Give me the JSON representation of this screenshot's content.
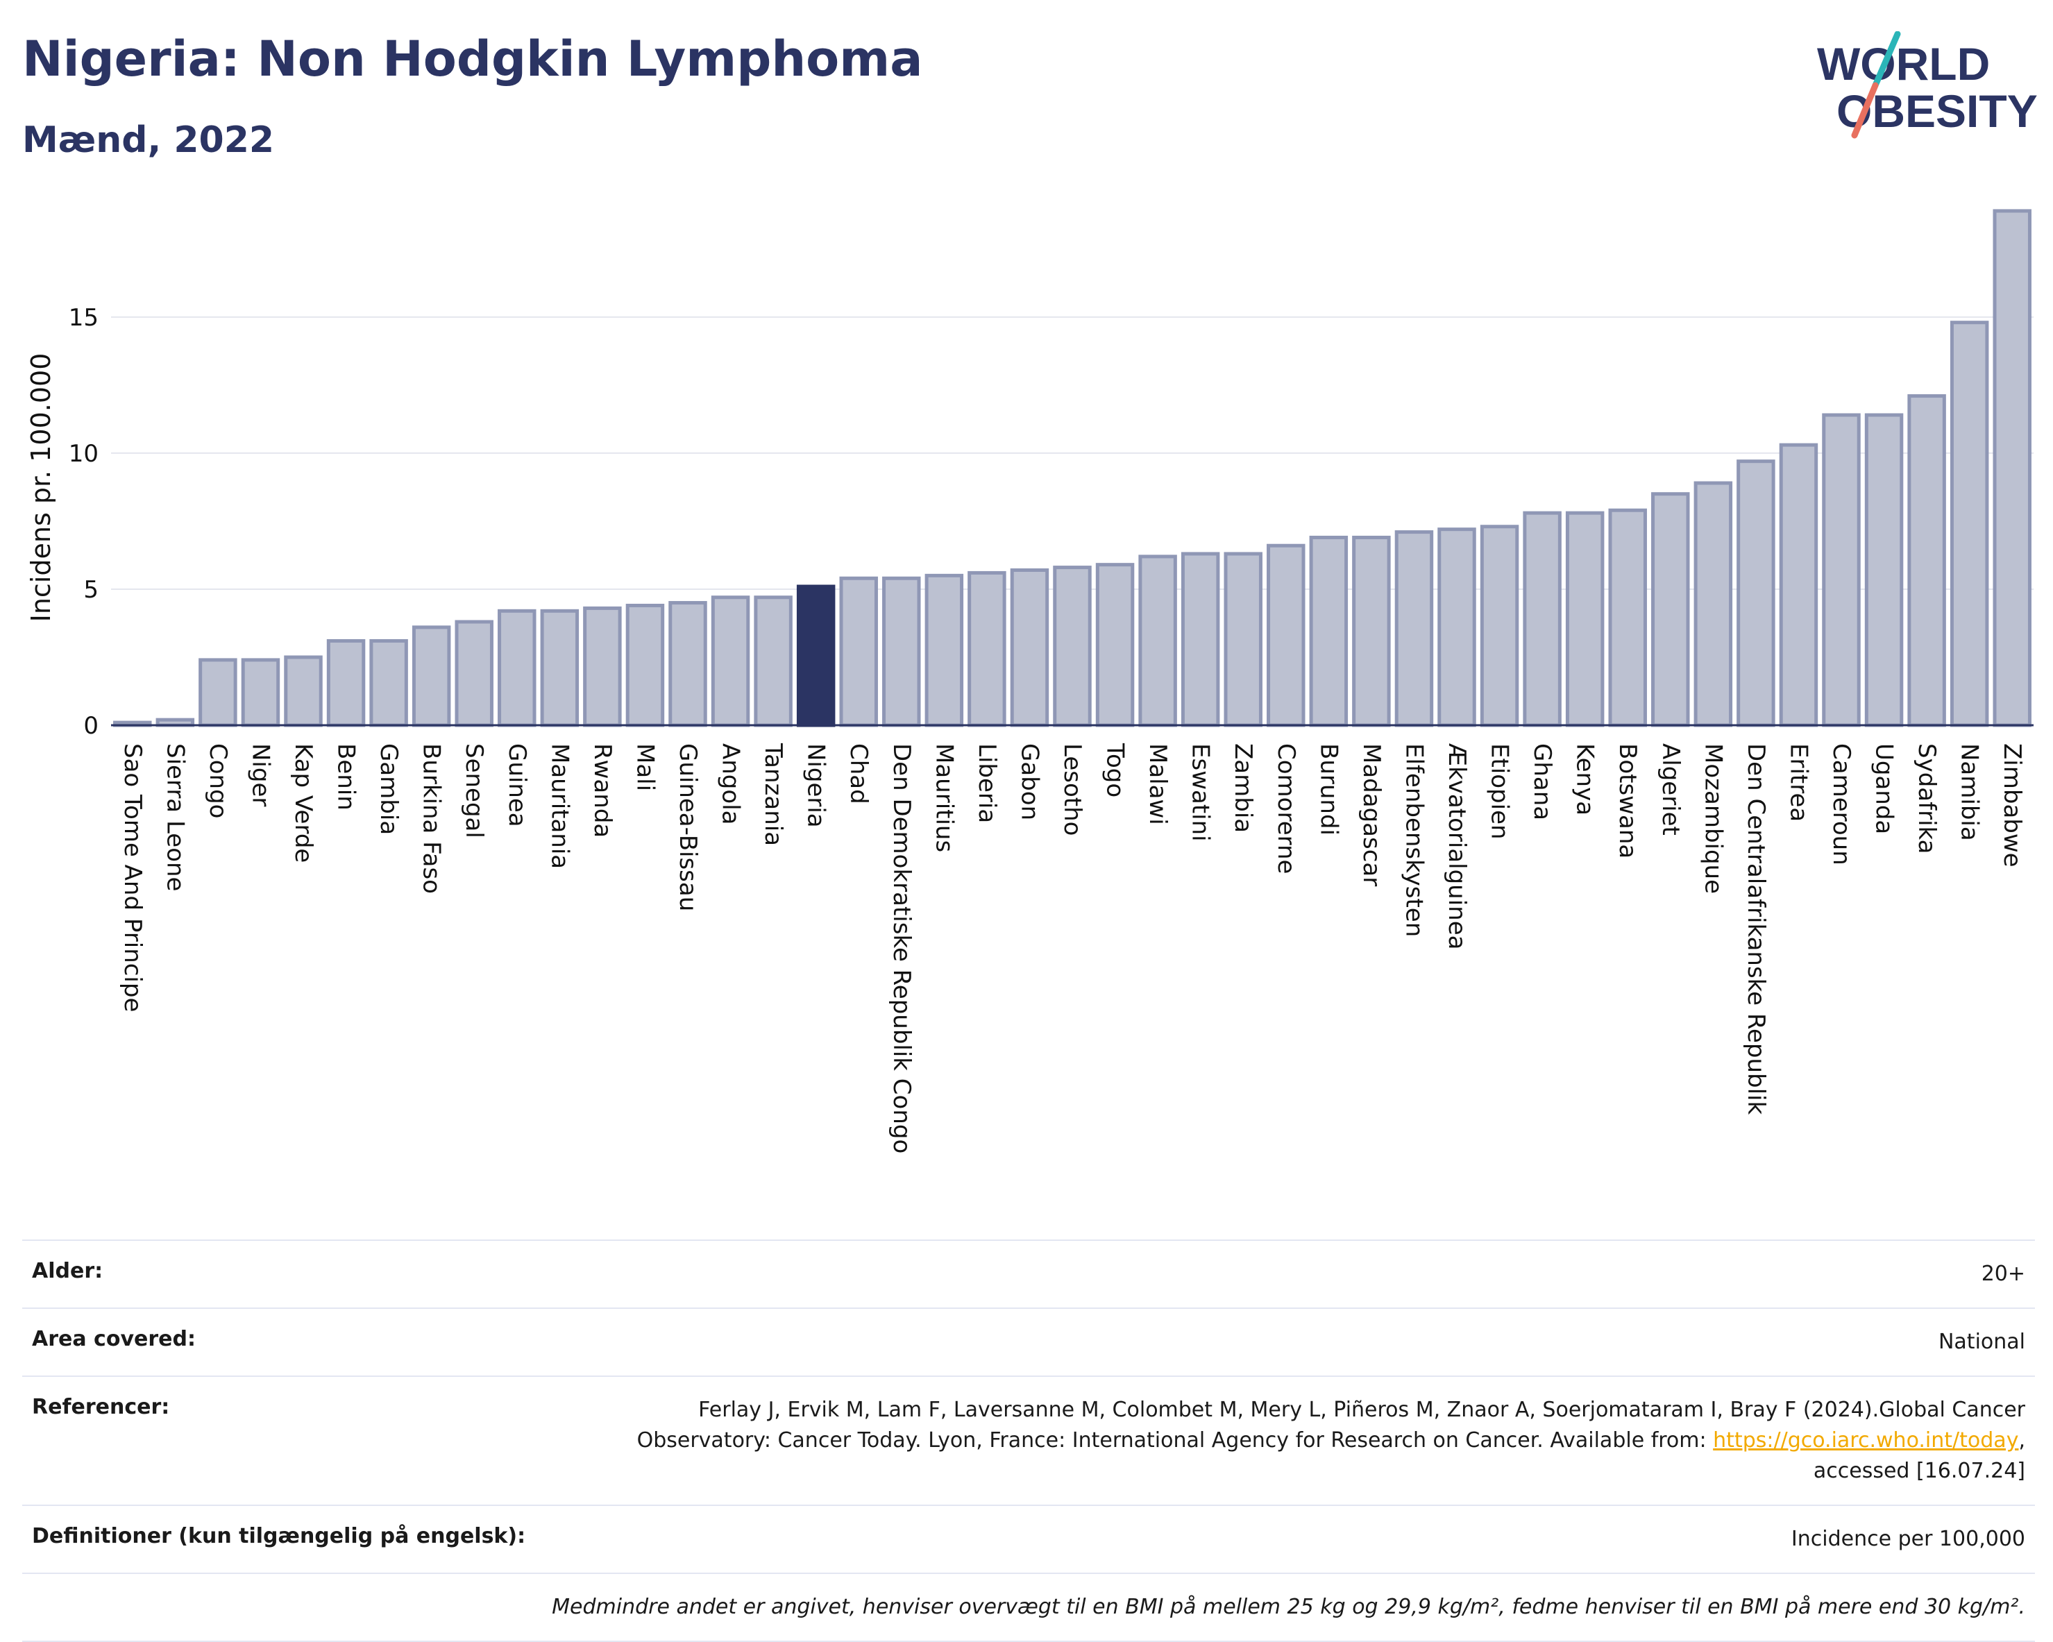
{
  "header": {
    "title": "Nigeria: Non Hodgkin Lymphoma",
    "subtitle": "Mænd, 2022",
    "logo_line1": "WORLD",
    "logo_line2": "OBESITY"
  },
  "colors": {
    "bar": "#bcc1d1",
    "bar_stroke": "#8f97b5",
    "highlight": "#2b3463",
    "text": "#2b3463",
    "grid": "#e4e6ee",
    "logo_teal": "#2bb5b8",
    "logo_coral": "#e8705f",
    "link": "#f2a900"
  },
  "chart_data": {
    "type": "bar",
    "ylabel": "Incidens pr. 100.000",
    "xlabel": "",
    "ylim": [
      0,
      19
    ],
    "yticks": [
      0,
      5,
      10,
      15
    ],
    "highlight": "Nigeria",
    "categories": [
      "Sao Tome And Principe",
      "Sierra Leone",
      "Congo",
      "Niger",
      "Kap Verde",
      "Benin",
      "Gambia",
      "Burkina Faso",
      "Senegal",
      "Guinea",
      "Mauritania",
      "Rwanda",
      "Mali",
      "Guinea-Bissau",
      "Angola",
      "Tanzania",
      "Nigeria",
      "Chad",
      "Den Demokratiske Republik Congo",
      "Mauritius",
      "Liberia",
      "Gabon",
      "Lesotho",
      "Togo",
      "Malawi",
      "Eswatini",
      "Zambia",
      "Comorerne",
      "Burundi",
      "Madagascar",
      "Elfenbenskysten",
      "Ækvatorialguinea",
      "Etiopien",
      "Ghana",
      "Kenya",
      "Botswana",
      "Algeriet",
      "Mozambique",
      "Den Centralafrikanske Republik",
      "Eritrea",
      "Cameroun",
      "Uganda",
      "Sydafrika",
      "Namibia",
      "Zimbabwe"
    ],
    "values": [
      0.1,
      0.2,
      2.4,
      2.4,
      2.5,
      3.1,
      3.1,
      3.6,
      3.8,
      4.2,
      4.2,
      4.3,
      4.4,
      4.5,
      4.7,
      4.7,
      5.1,
      5.4,
      5.4,
      5.5,
      5.6,
      5.7,
      5.8,
      5.9,
      6.2,
      6.3,
      6.3,
      6.6,
      6.9,
      6.9,
      7.1,
      7.2,
      7.3,
      7.8,
      7.8,
      7.9,
      8.5,
      8.9,
      9.7,
      10.3,
      11.4,
      11.4,
      12.1,
      14.8,
      18.9
    ]
  },
  "info": {
    "age_label": "Alder:",
    "age_value": "20+",
    "area_label": "Area covered:",
    "area_value": "National",
    "ref_label": "Referencer:",
    "ref_text1": "Ferlay J, Ervik M, Lam F, Laversanne M, Colombet M, Mery L, Piñeros M, Znaor A, Soerjomataram I, Bray F (2024).Global Cancer",
    "ref_text2": "Observatory: Cancer Today. Lyon, France: International Agency for Research on Cancer. Available from: ",
    "ref_link": "https://gco.iarc.who.int/today",
    "ref_text3": ",",
    "ref_text4": "accessed [16.07.24]",
    "def_label": "Definitioner (kun tilgængelig på engelsk):",
    "def_value": "Incidence per 100,000",
    "note": "Medmindre andet er angivet, henviser overvægt til en BMI på mellem 25 kg og 29,9 kg/m², fedme henviser til en BMI på mere end 30 kg/m²."
  }
}
